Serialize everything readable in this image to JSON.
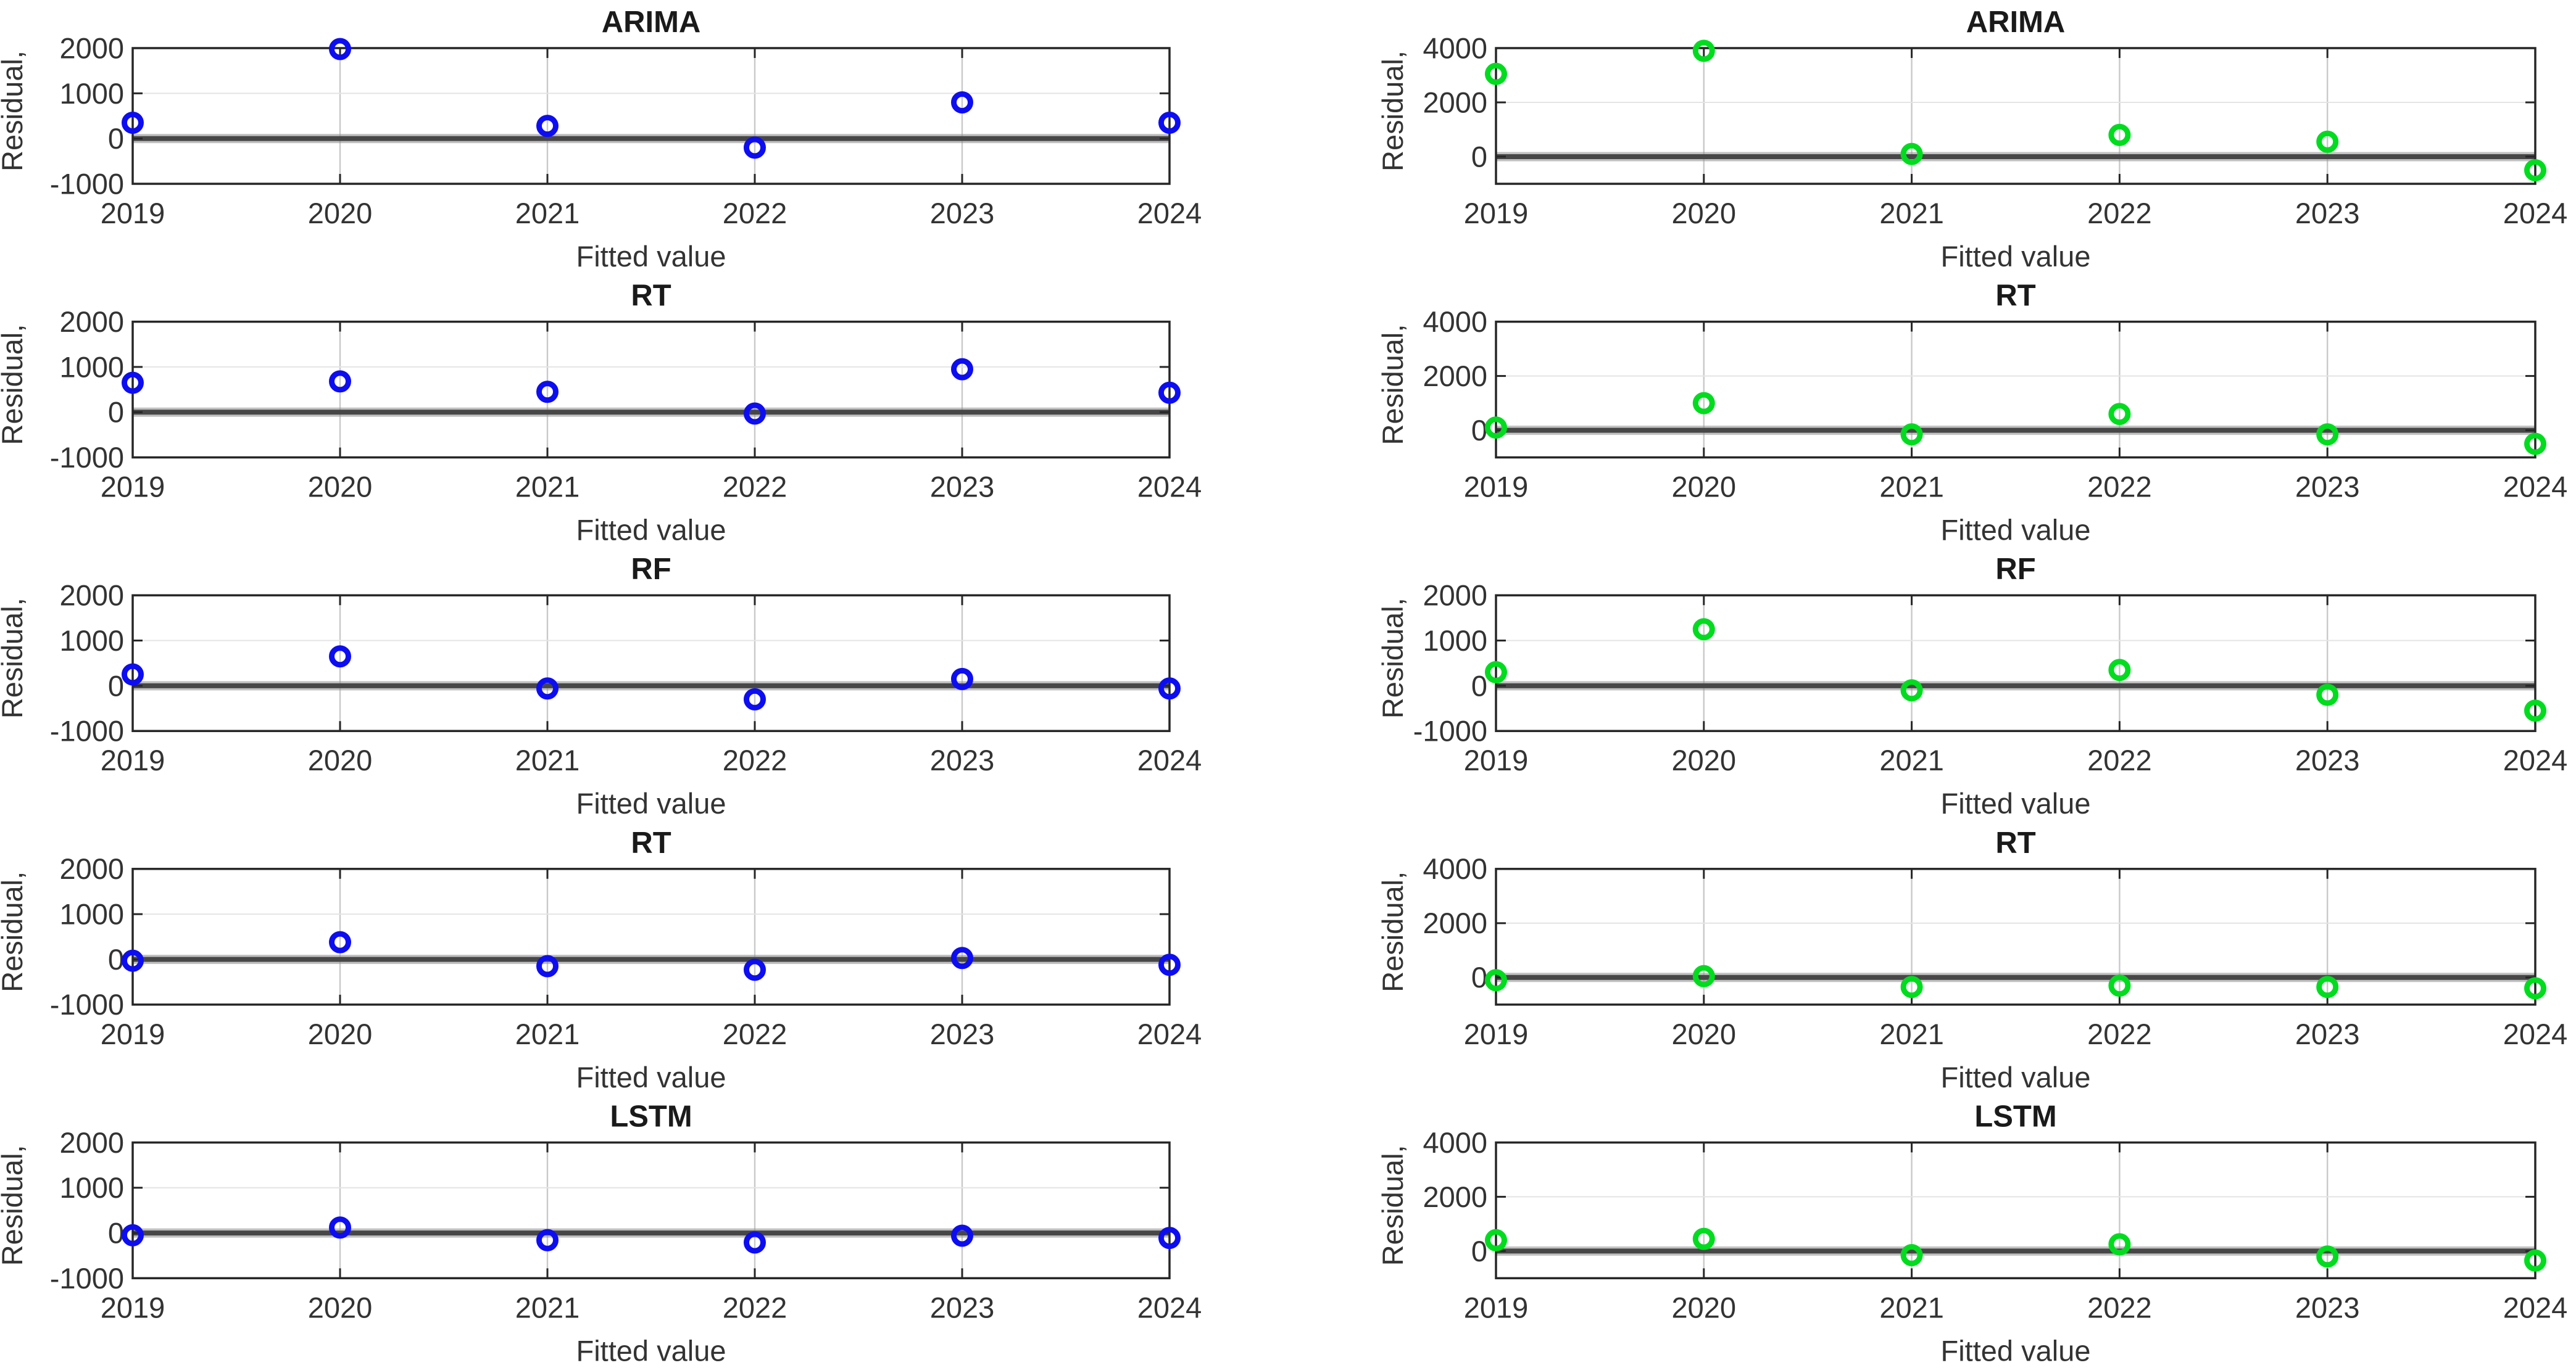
{
  "figure": {
    "background": "#ffffff",
    "columns": 2,
    "rows": 5,
    "xlabel": "Fitted value",
    "ylabel": "Residual,",
    "x_ticks": [
      "2019",
      "2020",
      "2021",
      "2022",
      "2023",
      "2024"
    ],
    "colors": {
      "left_series": "#0d0df2",
      "right_series": "#00dc1e",
      "axes_box": "#262626",
      "tick_text": "#333333",
      "title_text": "#1a1a1a",
      "zero_line_core": "#474747",
      "zero_line_halo": "#8f8f8f",
      "grid_vertical": "#c9c9c9",
      "grid_horizontal": "#e4e4e4"
    }
  },
  "chart_data": [
    {
      "id": "arima-left",
      "row": 0,
      "col": "left",
      "type": "scatter",
      "title": "ARIMA",
      "xlabel": "Fitted value",
      "ylabel": "Residual,",
      "x": [
        2019,
        2020,
        2021,
        2022,
        2023,
        2024
      ],
      "values": [
        350,
        1980,
        280,
        -200,
        800,
        350
      ],
      "ylim": [
        -1000,
        2000
      ],
      "yticks": [
        2000,
        1000,
        0,
        -1000
      ],
      "yticklabels": [
        "2000",
        "1000",
        "0",
        "-1000"
      ],
      "series_color": "#0d0df2",
      "marker": "open-circle",
      "grid": true,
      "legend": "none"
    },
    {
      "id": "arima-right",
      "row": 0,
      "col": "right",
      "type": "scatter",
      "title": "ARIMA",
      "xlabel": "Fitted value",
      "ylabel": "Residual,",
      "x": [
        2019,
        2020,
        2021,
        2022,
        2023,
        2024
      ],
      "values": [
        3050,
        3900,
        100,
        800,
        550,
        -500
      ],
      "ylim": [
        -1000,
        4000
      ],
      "yticks": [
        4000,
        2000,
        0
      ],
      "yticklabels": [
        "4000",
        "2000",
        "0"
      ],
      "series_color": "#00dc1e",
      "marker": "open-circle",
      "grid": true,
      "legend": "none"
    },
    {
      "id": "rt1-left",
      "row": 1,
      "col": "left",
      "type": "scatter",
      "title": "RT",
      "xlabel": "Fitted value",
      "ylabel": "Residual,",
      "x": [
        2019,
        2020,
        2021,
        2022,
        2023,
        2024
      ],
      "values": [
        650,
        680,
        450,
        -30,
        950,
        430
      ],
      "ylim": [
        -1000,
        2000
      ],
      "yticks": [
        2000,
        1000,
        0,
        -1000
      ],
      "yticklabels": [
        "2000",
        "1000",
        "0",
        "-1000"
      ],
      "series_color": "#0d0df2",
      "marker": "open-circle",
      "grid": true,
      "legend": "none"
    },
    {
      "id": "rt1-right",
      "row": 1,
      "col": "right",
      "type": "scatter",
      "title": "RT",
      "xlabel": "Fitted value",
      "ylabel": "Residual,",
      "x": [
        2019,
        2020,
        2021,
        2022,
        2023,
        2024
      ],
      "values": [
        100,
        1000,
        -150,
        600,
        -150,
        -500
      ],
      "ylim": [
        -1000,
        4000
      ],
      "yticks": [
        4000,
        2000,
        0
      ],
      "yticklabels": [
        "4000",
        "2000",
        "0"
      ],
      "series_color": "#00dc1e",
      "marker": "open-circle",
      "grid": true,
      "legend": "none"
    },
    {
      "id": "rf-left",
      "row": 2,
      "col": "left",
      "type": "scatter",
      "title": "RF",
      "xlabel": "Fitted value",
      "ylabel": "Residual,",
      "x": [
        2019,
        2020,
        2021,
        2022,
        2023,
        2024
      ],
      "values": [
        250,
        650,
        -60,
        -300,
        150,
        -60
      ],
      "ylim": [
        -1000,
        2000
      ],
      "yticks": [
        2000,
        1000,
        0,
        -1000
      ],
      "yticklabels": [
        "2000",
        "1000",
        "0",
        "-1000"
      ],
      "series_color": "#0d0df2",
      "marker": "open-circle",
      "grid": true,
      "legend": "none"
    },
    {
      "id": "rf-right",
      "row": 2,
      "col": "right",
      "type": "scatter",
      "title": "RF",
      "xlabel": "Fitted value",
      "ylabel": "Residual,",
      "x": [
        2019,
        2020,
        2021,
        2022,
        2023,
        2024
      ],
      "values": [
        300,
        1250,
        -100,
        350,
        -200,
        -550
      ],
      "ylim": [
        -1000,
        2000
      ],
      "yticks": [
        2000,
        1000,
        0,
        -1000
      ],
      "yticklabels": [
        "2000",
        "1000",
        "0",
        "-1000"
      ],
      "series_color": "#00dc1e",
      "marker": "open-circle",
      "grid": true,
      "legend": "none"
    },
    {
      "id": "rt2-left",
      "row": 3,
      "col": "left",
      "type": "scatter",
      "title": "RT",
      "xlabel": "Fitted value",
      "ylabel": "Residual,",
      "x": [
        2019,
        2020,
        2021,
        2022,
        2023,
        2024
      ],
      "values": [
        -30,
        380,
        -150,
        -230,
        30,
        -120
      ],
      "ylim": [
        -1000,
        2000
      ],
      "yticks": [
        2000,
        1000,
        0,
        -1000
      ],
      "yticklabels": [
        "2000",
        "1000",
        "0",
        "-1000"
      ],
      "series_color": "#0d0df2",
      "marker": "open-circle",
      "grid": true,
      "legend": "none"
    },
    {
      "id": "rt2-right",
      "row": 3,
      "col": "right",
      "type": "scatter",
      "title": "RT",
      "xlabel": "Fitted value",
      "ylabel": "Residual,",
      "x": [
        2019,
        2020,
        2021,
        2022,
        2023,
        2024
      ],
      "values": [
        -100,
        50,
        -350,
        -300,
        -350,
        -400
      ],
      "ylim": [
        -1000,
        4000
      ],
      "yticks": [
        4000,
        2000,
        0
      ],
      "yticklabels": [
        "4000",
        "2000",
        "0"
      ],
      "series_color": "#00dc1e",
      "marker": "open-circle",
      "grid": true,
      "legend": "none"
    },
    {
      "id": "lstm-left",
      "row": 4,
      "col": "left",
      "type": "scatter",
      "title": "LSTM",
      "xlabel": "Fitted value",
      "ylabel": "Residual,",
      "x": [
        2019,
        2020,
        2021,
        2022,
        2023,
        2024
      ],
      "values": [
        -50,
        120,
        -160,
        -210,
        -60,
        -110
      ],
      "ylim": [
        -1000,
        2000
      ],
      "yticks": [
        2000,
        1000,
        0,
        -1000
      ],
      "yticklabels": [
        "2000",
        "1000",
        "0",
        "-1000"
      ],
      "series_color": "#0d0df2",
      "marker": "open-circle",
      "grid": true,
      "legend": "none"
    },
    {
      "id": "lstm-right",
      "row": 4,
      "col": "right",
      "type": "scatter",
      "title": "LSTM",
      "xlabel": "Fitted value",
      "ylabel": "Residual,",
      "x": [
        2019,
        2020,
        2021,
        2022,
        2023,
        2024
      ],
      "values": [
        400,
        450,
        -150,
        250,
        -200,
        -350
      ],
      "ylim": [
        -1000,
        4000
      ],
      "yticks": [
        4000,
        2000,
        0
      ],
      "yticklabels": [
        "4000",
        "2000",
        "0"
      ],
      "series_color": "#00dc1e",
      "marker": "open-circle",
      "grid": true,
      "legend": "none"
    }
  ]
}
